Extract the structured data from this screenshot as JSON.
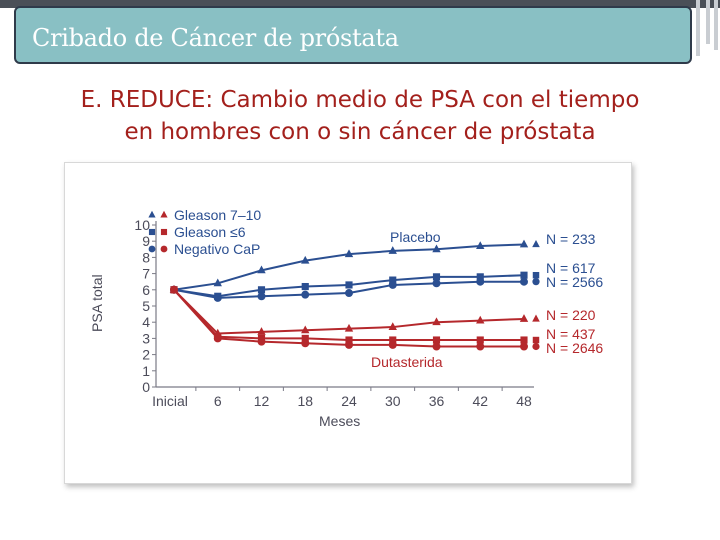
{
  "slide": {
    "title": "Cribado de Cáncer de próstata",
    "heading_line1": "E. REDUCE: Cambio medio de PSA con el tiempo",
    "heading_line2": "en hombres con o sin cáncer de próstata"
  },
  "colors": {
    "title_bg": "#89c0c4",
    "heading": "#a3201c",
    "placebo": "#2b4f91",
    "dutasterida": "#b5282c",
    "axis": "#7a7a86"
  },
  "chart_data": {
    "type": "line",
    "categories": [
      "Inicial",
      "6",
      "12",
      "18",
      "24",
      "30",
      "36",
      "42",
      "48"
    ],
    "xlabel": "Meses",
    "ylabel": "PSA total",
    "ylim": [
      0,
      10
    ],
    "yticks": [
      "0",
      "1",
      "2",
      "3",
      "4",
      "5",
      "6",
      "7",
      "8",
      "9",
      "10"
    ],
    "legend": [
      {
        "label": "Gleason 7–10",
        "marker": "triangle"
      },
      {
        "label": "Gleason ≤6",
        "marker": "square"
      },
      {
        "label": "Negativo CaP",
        "marker": "circle"
      }
    ],
    "group_labels": {
      "placebo": "Placebo",
      "dutasterida": "Dutasterida"
    },
    "series": [
      {
        "name": "Placebo Gleason 7–10",
        "group": "placebo",
        "marker": "triangle",
        "n_label": "N = 233",
        "values": [
          6.0,
          6.4,
          7.2,
          7.8,
          8.2,
          8.4,
          8.5,
          8.7,
          8.8
        ]
      },
      {
        "name": "Placebo Gleason ≤6",
        "group": "placebo",
        "marker": "square",
        "n_label": "N = 617",
        "values": [
          6.0,
          5.6,
          6.0,
          6.2,
          6.3,
          6.6,
          6.8,
          6.8,
          6.9
        ]
      },
      {
        "name": "Placebo Negativo CaP",
        "group": "placebo",
        "marker": "circle",
        "n_label": "N = 2566",
        "values": [
          6.0,
          5.5,
          5.6,
          5.7,
          5.8,
          6.3,
          6.4,
          6.5,
          6.5
        ]
      },
      {
        "name": "Dutasterida Gleason 7–10",
        "group": "dutasterida",
        "marker": "triangle",
        "n_label": "N = 220",
        "values": [
          6.0,
          3.3,
          3.4,
          3.5,
          3.6,
          3.7,
          4.0,
          4.1,
          4.2
        ]
      },
      {
        "name": "Dutasterida Gleason ≤6",
        "group": "dutasterida",
        "marker": "square",
        "n_label": "N = 437",
        "values": [
          6.0,
          3.1,
          3.0,
          3.0,
          2.9,
          2.9,
          2.9,
          2.9,
          2.9
        ]
      },
      {
        "name": "Dutasterida Negativo CaP",
        "group": "dutasterida",
        "marker": "circle",
        "n_label": "N = 2646",
        "values": [
          6.0,
          3.0,
          2.8,
          2.7,
          2.6,
          2.6,
          2.5,
          2.5,
          2.5
        ]
      }
    ]
  }
}
